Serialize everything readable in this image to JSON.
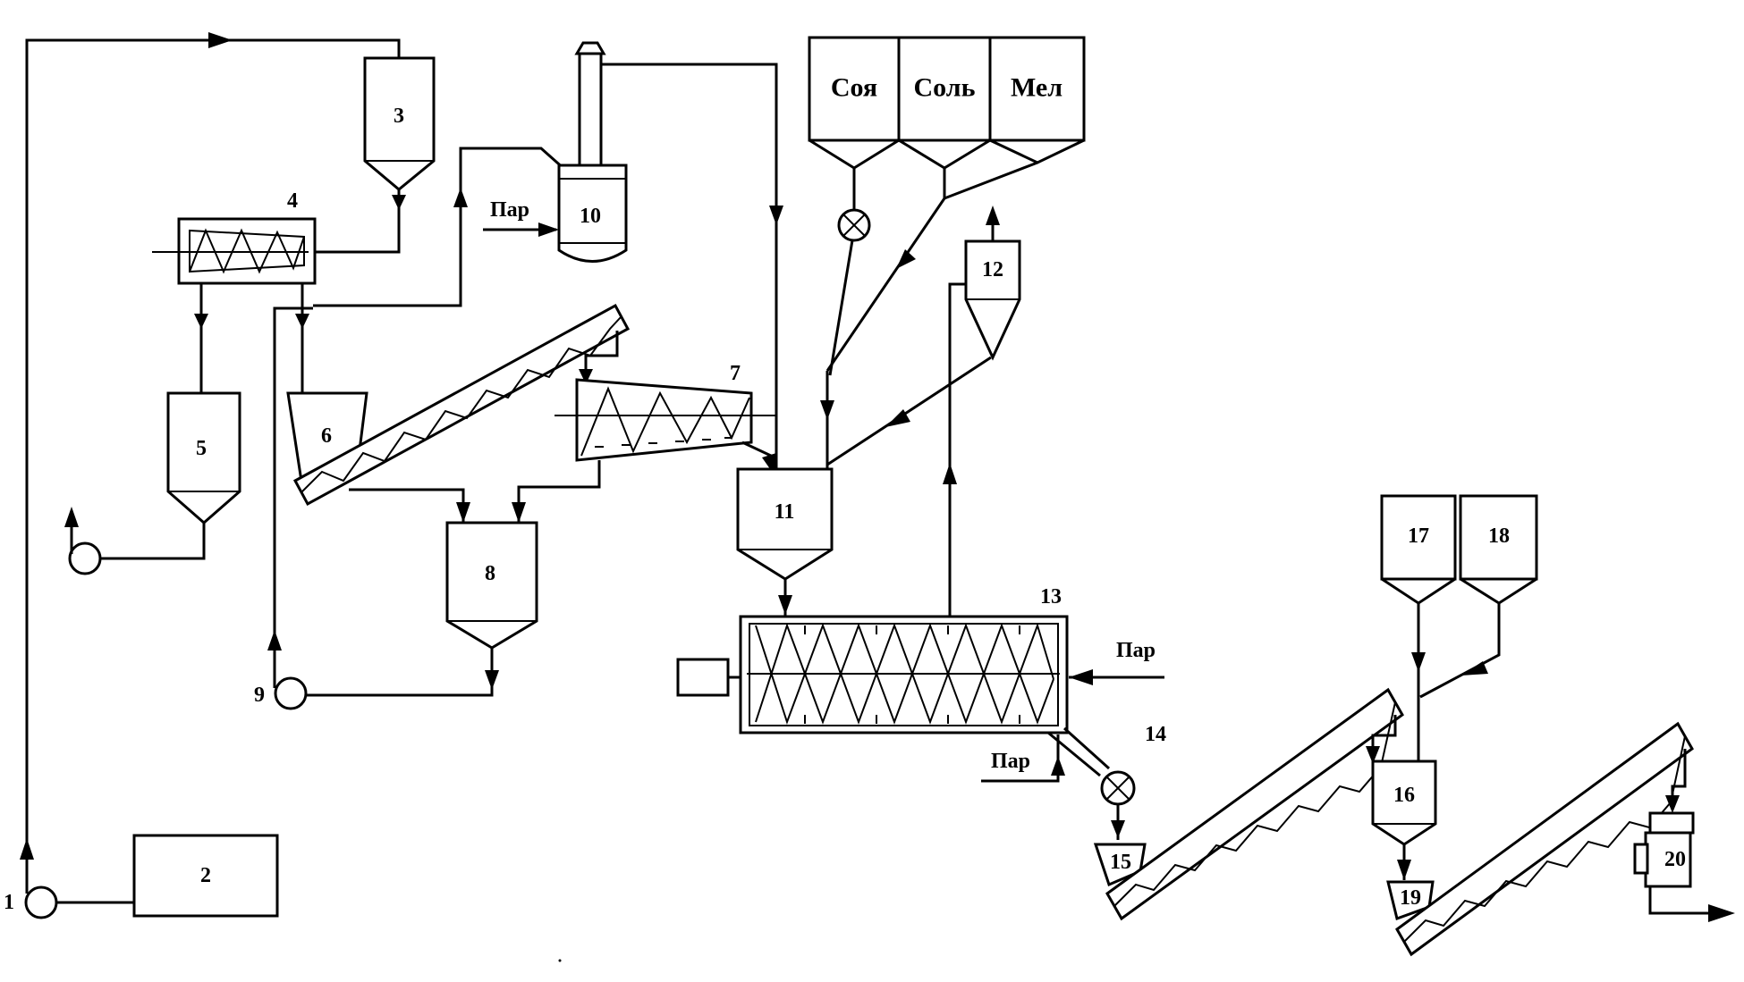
{
  "equipment_labels": {
    "n1": "1",
    "n2": "2",
    "n3": "3",
    "n4": "4",
    "n5": "5",
    "n6": "6",
    "n7": "7",
    "n8": "8",
    "n9": "9",
    "n10": "10",
    "n11": "11",
    "n12": "12",
    "n13": "13",
    "n14": "14",
    "n15": "15",
    "n16": "16",
    "n17": "17",
    "n18": "18",
    "n19": "19",
    "n20": "20"
  },
  "hopper_labels": {
    "soy": "Соя",
    "salt": "Соль",
    "chalk": "Мел"
  },
  "stream_labels": {
    "steam": "Пар"
  }
}
